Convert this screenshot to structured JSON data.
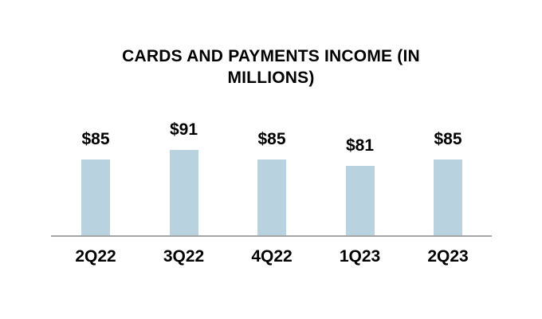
{
  "chart_data": {
    "type": "bar",
    "title": "CARDS AND PAYMENTS INCOME (IN MILLIONS)",
    "title_lines": [
      "CARDS AND PAYMENTS INCOME (IN",
      "MILLIONS)"
    ],
    "categories": [
      "2Q22",
      "3Q22",
      "4Q22",
      "1Q23",
      "2Q23"
    ],
    "values": [
      85,
      91,
      85,
      81,
      85
    ],
    "data_labels": [
      "$85",
      "$91",
      "$85",
      "$81",
      "$85"
    ],
    "xlabel": "",
    "ylabel": "",
    "grid": false,
    "legend": "none",
    "value_axis_visible": false,
    "colors": {
      "bar_fill": "#b8d3df",
      "axis_line": "#a6a6a6",
      "text": "#000000",
      "background": "#ffffff"
    }
  }
}
